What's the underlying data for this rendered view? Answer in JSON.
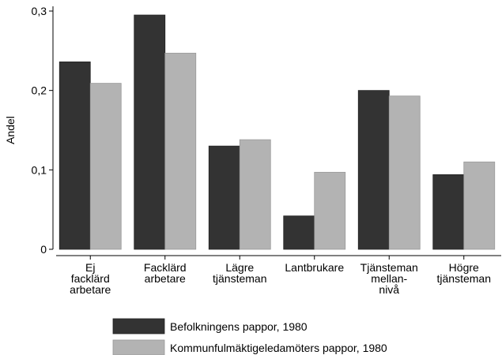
{
  "chart_data": {
    "type": "bar",
    "y_label": "Andel",
    "categories": [
      "Ej\nfacklärd\narbetare",
      "Facklärd\narbetare",
      "Lägre\ntjänsteman",
      "Lantbrukare",
      "Tjänsteman\nmellan-\nnivå",
      "Högre\ntjänsteman"
    ],
    "series": [
      {
        "name": "Befolkningens pappor, 1980",
        "color": "#333333",
        "values": [
          0.236,
          0.295,
          0.13,
          0.042,
          0.2,
          0.094
        ]
      },
      {
        "name": "Kommunfulmäktigeledamöters pappor, 1980",
        "color": "#b3b3b3",
        "values": [
          0.209,
          0.247,
          0.138,
          0.097,
          0.193,
          0.11
        ]
      }
    ],
    "ylim": [
      0,
      0.3
    ],
    "yticks": [
      0,
      {
        "value": 0.1,
        "label": "0,1"
      },
      {
        "value": 0.2,
        "label": "0,2"
      },
      {
        "value": 0.3,
        "label": "0,3"
      }
    ],
    "grid": false
  }
}
